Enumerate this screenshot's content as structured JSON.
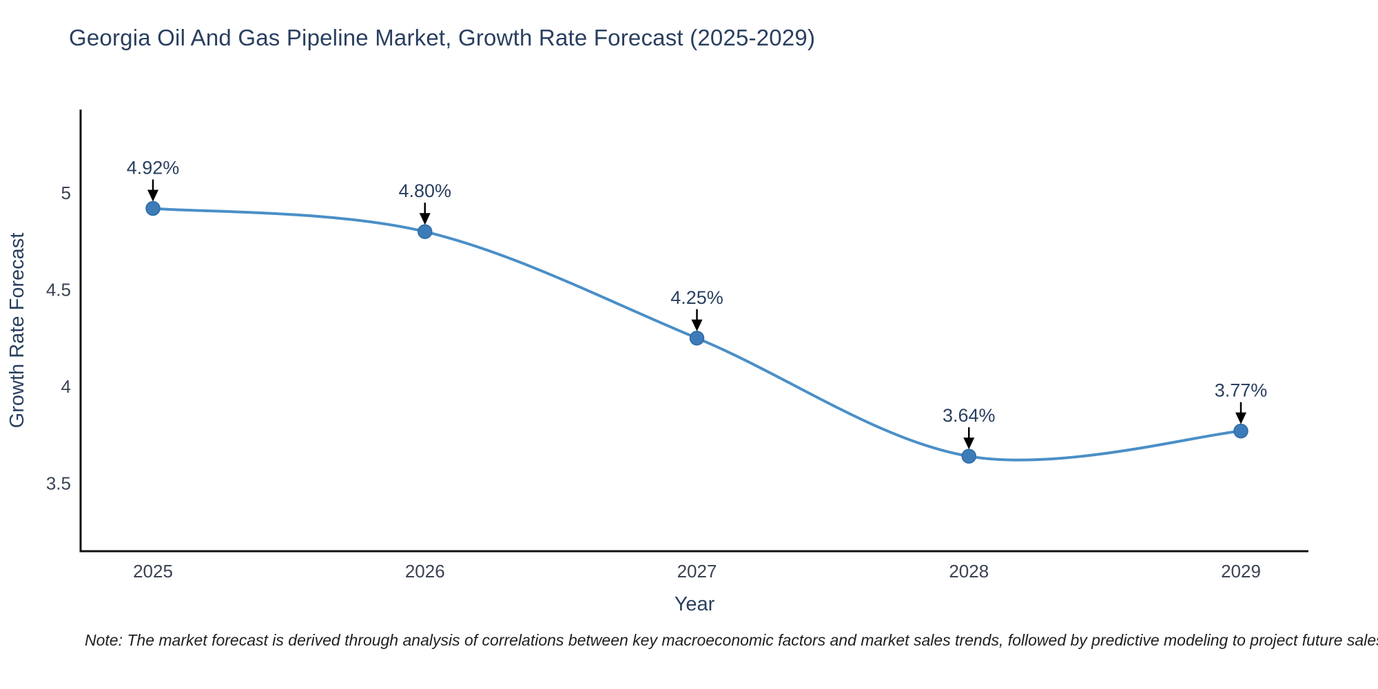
{
  "title": "Georgia Oil And Gas Pipeline Market, Growth Rate Forecast (2025-2029)",
  "note": "Note: The market forecast is derived through analysis of correlations between key macroeconomic factors and market sales trends, followed by predictive modeling to project future sales",
  "colors": {
    "background": "#ffffff",
    "line": "#4a8fc7",
    "marker": "#3d7cb8",
    "marker_edge": "#2f6ba6",
    "axis_line": "#111111",
    "title_text": "#2a3f5f",
    "axis_title_text": "#2a3f5f",
    "tick_text": "#3b4254",
    "annotation_text": "#2a3f5f",
    "arrow": "#000000",
    "note_text": "#1f1f1f"
  },
  "chart_data": {
    "type": "line",
    "title": "Georgia Oil And Gas Pipeline Market, Growth Rate Forecast (2025-2029)",
    "xlabel": "Year",
    "ylabel": "Growth Rate Forecast",
    "x": [
      2025,
      2026,
      2027,
      2028,
      2029
    ],
    "xtick_labels": [
      "2025",
      "2026",
      "2027",
      "2028",
      "2029"
    ],
    "series": [
      {
        "name": "Growth Rate Forecast",
        "values": [
          4.92,
          4.8,
          4.25,
          3.64,
          3.77
        ],
        "point_labels": [
          "4.92%",
          "4.80%",
          "4.25%",
          "3.64%",
          "3.77%"
        ]
      }
    ],
    "yticks": [
      5,
      4.5,
      4,
      3.5
    ],
    "ytick_labels": [
      "5",
      "4.5",
      "4",
      "3.5"
    ],
    "ylim": [
      3.2,
      5.43
    ],
    "grid": false,
    "legend": false,
    "line_shape": "spline",
    "annotation_style": "value-label-with-down-arrow-to-point"
  }
}
